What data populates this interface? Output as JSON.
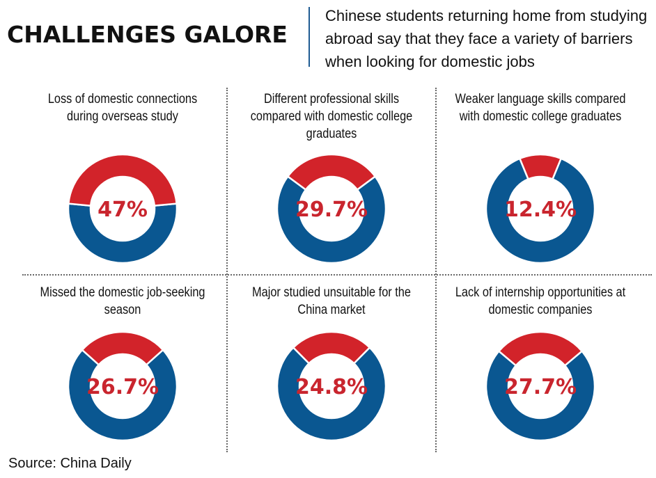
{
  "title": "CHALLENGES GALORE",
  "subtitle": "Chinese students returning home from studying abroad say that they face a variety of barriers when looking for domestic jobs",
  "source": "Source: China Daily",
  "colors": {
    "highlight": "#d2232a",
    "remainder": "#0a5791",
    "value_text": "#c9252e",
    "accent_rule": "#1e5b92"
  },
  "chart_data": [
    {
      "type": "pie",
      "title": "Loss of domestic connections during overseas study",
      "label": "47%",
      "values": [
        47,
        53
      ]
    },
    {
      "type": "pie",
      "title": "Different professional skills compared with domestic college graduates",
      "label": "29.7%",
      "values": [
        29.7,
        70.3
      ]
    },
    {
      "type": "pie",
      "title": "Weaker language skills compared with domestic college graduates",
      "label": "12.4%",
      "values": [
        12.4,
        87.6
      ]
    },
    {
      "type": "pie",
      "title": "Missed the domestic job-seeking season",
      "label": "26.7%",
      "values": [
        26.7,
        73.3
      ]
    },
    {
      "type": "pie",
      "title": "Major studied unsuitable for the China market",
      "label": "24.8%",
      "values": [
        24.8,
        75.2
      ]
    },
    {
      "type": "pie",
      "title": "Lack of internship opportunities at domestic companies",
      "label": "27.7%",
      "values": [
        27.7,
        72.3
      ]
    }
  ]
}
